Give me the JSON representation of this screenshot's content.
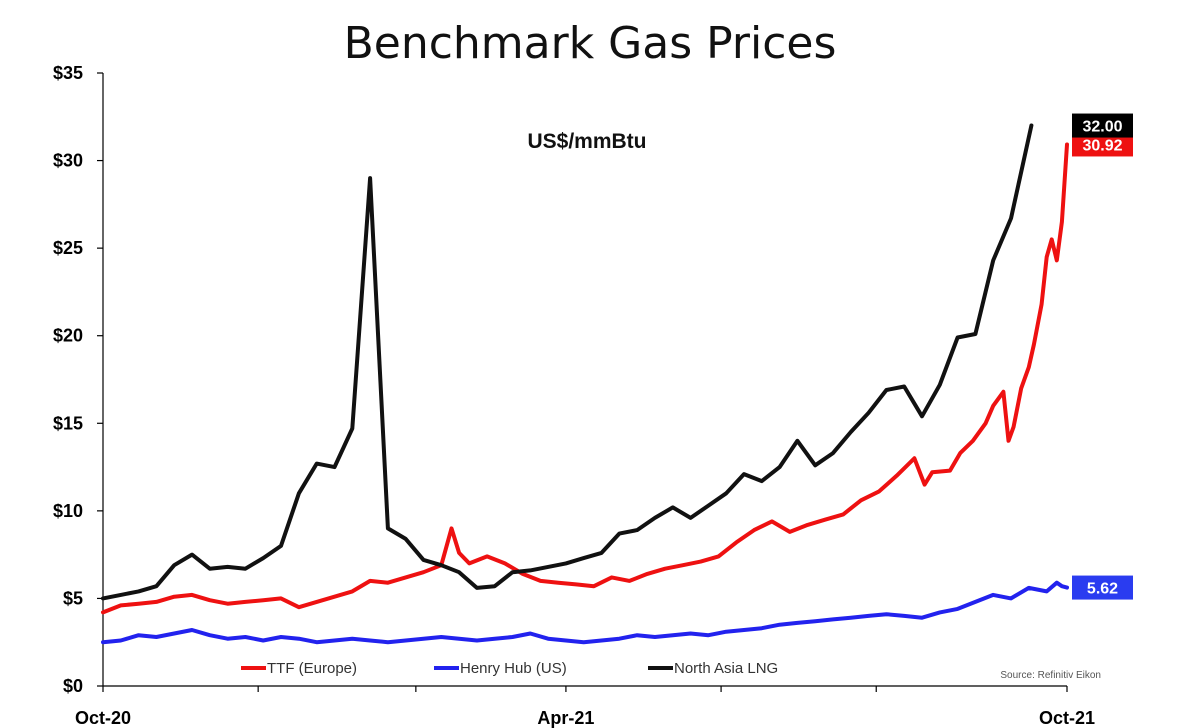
{
  "chart_data": {
    "type": "line",
    "title": "Benchmark Gas Prices",
    "subtitle": "US$/mmBtu",
    "xlabel": "",
    "ylabel": "",
    "ylim": [
      0,
      35
    ],
    "yticks": [
      0,
      5,
      10,
      15,
      20,
      25,
      30,
      35
    ],
    "ytick_labels": [
      "$0",
      "$5",
      "$10",
      "$15",
      "$20",
      "$25",
      "$30",
      "$35"
    ],
    "xticks": [
      "Oct-20",
      "Apr-21",
      "Oct-21"
    ],
    "xlim": [
      "2020-10",
      "2021-10"
    ],
    "grid": false,
    "legend_position": "bottom",
    "source": "Source: Refinitiv Eikon",
    "series": [
      {
        "name": "TTF (Europe)",
        "color": "#ee1111",
        "end_label": "30.92",
        "points": [
          [
            "2020-10-01",
            4.2
          ],
          [
            "2020-10-08",
            4.6
          ],
          [
            "2020-10-15",
            4.7
          ],
          [
            "2020-10-22",
            4.8
          ],
          [
            "2020-10-29",
            5.1
          ],
          [
            "2020-11-05",
            5.2
          ],
          [
            "2020-11-12",
            4.9
          ],
          [
            "2020-11-19",
            4.7
          ],
          [
            "2020-11-26",
            4.8
          ],
          [
            "2020-12-03",
            4.9
          ],
          [
            "2020-12-10",
            5.0
          ],
          [
            "2020-12-17",
            4.5
          ],
          [
            "2020-12-24",
            4.8
          ],
          [
            "2020-12-31",
            5.1
          ],
          [
            "2021-01-07",
            5.4
          ],
          [
            "2021-01-14",
            6.0
          ],
          [
            "2021-01-21",
            5.9
          ],
          [
            "2021-01-28",
            6.2
          ],
          [
            "2021-02-04",
            6.5
          ],
          [
            "2021-02-11",
            6.9
          ],
          [
            "2021-02-15",
            9.0
          ],
          [
            "2021-02-18",
            7.6
          ],
          [
            "2021-02-22",
            7.0
          ],
          [
            "2021-03-01",
            7.4
          ],
          [
            "2021-03-08",
            7.0
          ],
          [
            "2021-03-15",
            6.4
          ],
          [
            "2021-03-22",
            6.0
          ],
          [
            "2021-03-29",
            5.9
          ],
          [
            "2021-04-05",
            5.8
          ],
          [
            "2021-04-12",
            5.7
          ],
          [
            "2021-04-19",
            6.2
          ],
          [
            "2021-04-26",
            6.0
          ],
          [
            "2021-05-03",
            6.4
          ],
          [
            "2021-05-10",
            6.7
          ],
          [
            "2021-05-17",
            6.9
          ],
          [
            "2021-05-24",
            7.1
          ],
          [
            "2021-05-31",
            7.4
          ],
          [
            "2021-06-07",
            8.2
          ],
          [
            "2021-06-14",
            8.9
          ],
          [
            "2021-06-21",
            9.4
          ],
          [
            "2021-06-28",
            8.8
          ],
          [
            "2021-07-05",
            9.2
          ],
          [
            "2021-07-12",
            9.5
          ],
          [
            "2021-07-19",
            9.8
          ],
          [
            "2021-07-26",
            10.6
          ],
          [
            "2021-08-02",
            11.1
          ],
          [
            "2021-08-09",
            12.0
          ],
          [
            "2021-08-16",
            13.0
          ],
          [
            "2021-08-20",
            11.5
          ],
          [
            "2021-08-23",
            12.2
          ],
          [
            "2021-08-30",
            12.3
          ],
          [
            "2021-09-03",
            13.3
          ],
          [
            "2021-09-08",
            14.0
          ],
          [
            "2021-09-13",
            15.0
          ],
          [
            "2021-09-16",
            16.0
          ],
          [
            "2021-09-20",
            16.8
          ],
          [
            "2021-09-22",
            14.0
          ],
          [
            "2021-09-24",
            14.8
          ],
          [
            "2021-09-27",
            17.0
          ],
          [
            "2021-09-30",
            18.2
          ],
          [
            "2021-10-02",
            19.5
          ],
          [
            "2021-10-05",
            21.8
          ],
          [
            "2021-10-07",
            24.5
          ],
          [
            "2021-10-09",
            25.5
          ],
          [
            "2021-10-11",
            24.3
          ],
          [
            "2021-10-13",
            26.5
          ],
          [
            "2021-10-15",
            30.92
          ]
        ]
      },
      {
        "name": "Henry Hub (US)",
        "color": "#2222ee",
        "end_label": "5.62",
        "points": [
          [
            "2020-10-01",
            2.5
          ],
          [
            "2020-10-08",
            2.6
          ],
          [
            "2020-10-15",
            2.9
          ],
          [
            "2020-10-22",
            2.8
          ],
          [
            "2020-10-29",
            3.0
          ],
          [
            "2020-11-05",
            3.2
          ],
          [
            "2020-11-12",
            2.9
          ],
          [
            "2020-11-19",
            2.7
          ],
          [
            "2020-11-26",
            2.8
          ],
          [
            "2020-12-03",
            2.6
          ],
          [
            "2020-12-10",
            2.8
          ],
          [
            "2020-12-17",
            2.7
          ],
          [
            "2020-12-24",
            2.5
          ],
          [
            "2020-12-31",
            2.6
          ],
          [
            "2021-01-07",
            2.7
          ],
          [
            "2021-01-14",
            2.6
          ],
          [
            "2021-01-21",
            2.5
          ],
          [
            "2021-01-28",
            2.6
          ],
          [
            "2021-02-04",
            2.7
          ],
          [
            "2021-02-11",
            2.8
          ],
          [
            "2021-02-18",
            2.7
          ],
          [
            "2021-02-25",
            2.6
          ],
          [
            "2021-03-04",
            2.7
          ],
          [
            "2021-03-11",
            2.8
          ],
          [
            "2021-03-18",
            3.0
          ],
          [
            "2021-03-25",
            2.7
          ],
          [
            "2021-04-01",
            2.6
          ],
          [
            "2021-04-08",
            2.5
          ],
          [
            "2021-04-15",
            2.6
          ],
          [
            "2021-04-22",
            2.7
          ],
          [
            "2021-04-29",
            2.9
          ],
          [
            "2021-05-06",
            2.8
          ],
          [
            "2021-05-13",
            2.9
          ],
          [
            "2021-05-20",
            3.0
          ],
          [
            "2021-05-27",
            2.9
          ],
          [
            "2021-06-03",
            3.1
          ],
          [
            "2021-06-10",
            3.2
          ],
          [
            "2021-06-17",
            3.3
          ],
          [
            "2021-06-24",
            3.5
          ],
          [
            "2021-07-01",
            3.6
          ],
          [
            "2021-07-08",
            3.7
          ],
          [
            "2021-07-15",
            3.8
          ],
          [
            "2021-07-22",
            3.9
          ],
          [
            "2021-07-29",
            4.0
          ],
          [
            "2021-08-05",
            4.1
          ],
          [
            "2021-08-12",
            4.0
          ],
          [
            "2021-08-19",
            3.9
          ],
          [
            "2021-08-26",
            4.2
          ],
          [
            "2021-09-02",
            4.4
          ],
          [
            "2021-09-09",
            4.8
          ],
          [
            "2021-09-16",
            5.2
          ],
          [
            "2021-09-23",
            5.0
          ],
          [
            "2021-09-30",
            5.6
          ],
          [
            "2021-10-07",
            5.4
          ],
          [
            "2021-10-11",
            5.9
          ],
          [
            "2021-10-13",
            5.7
          ],
          [
            "2021-10-15",
            5.62
          ]
        ]
      },
      {
        "name": "North Asia LNG",
        "color": "#111111",
        "end_label": "32.00",
        "points": [
          [
            "2020-10-01",
            5.0
          ],
          [
            "2020-10-08",
            5.2
          ],
          [
            "2020-10-15",
            5.4
          ],
          [
            "2020-10-22",
            5.7
          ],
          [
            "2020-10-29",
            6.9
          ],
          [
            "2020-11-05",
            7.5
          ],
          [
            "2020-11-12",
            6.7
          ],
          [
            "2020-11-19",
            6.8
          ],
          [
            "2020-11-26",
            6.7
          ],
          [
            "2020-12-03",
            7.3
          ],
          [
            "2020-12-10",
            8.0
          ],
          [
            "2020-12-17",
            11.0
          ],
          [
            "2020-12-24",
            12.7
          ],
          [
            "2020-12-31",
            12.5
          ],
          [
            "2021-01-07",
            14.7
          ],
          [
            "2021-01-14",
            29.0
          ],
          [
            "2021-01-21",
            9.0
          ],
          [
            "2021-01-28",
            8.4
          ],
          [
            "2021-02-04",
            7.2
          ],
          [
            "2021-02-11",
            6.9
          ],
          [
            "2021-02-18",
            6.5
          ],
          [
            "2021-02-25",
            5.6
          ],
          [
            "2021-03-04",
            5.7
          ],
          [
            "2021-03-11",
            6.5
          ],
          [
            "2021-03-18",
            6.6
          ],
          [
            "2021-03-25",
            6.8
          ],
          [
            "2021-04-01",
            7.0
          ],
          [
            "2021-04-08",
            7.3
          ],
          [
            "2021-04-15",
            7.6
          ],
          [
            "2021-04-22",
            8.7
          ],
          [
            "2021-04-29",
            8.9
          ],
          [
            "2021-05-06",
            9.6
          ],
          [
            "2021-05-13",
            10.2
          ],
          [
            "2021-05-20",
            9.6
          ],
          [
            "2021-05-27",
            10.3
          ],
          [
            "2021-06-03",
            11.0
          ],
          [
            "2021-06-10",
            12.1
          ],
          [
            "2021-06-17",
            11.7
          ],
          [
            "2021-06-24",
            12.5
          ],
          [
            "2021-07-01",
            14.0
          ],
          [
            "2021-07-08",
            12.6
          ],
          [
            "2021-07-15",
            13.3
          ],
          [
            "2021-07-22",
            14.5
          ],
          [
            "2021-07-29",
            15.6
          ],
          [
            "2021-08-05",
            16.9
          ],
          [
            "2021-08-12",
            17.1
          ],
          [
            "2021-08-19",
            15.4
          ],
          [
            "2021-08-26",
            17.2
          ],
          [
            "2021-09-02",
            19.9
          ],
          [
            "2021-09-09",
            20.1
          ],
          [
            "2021-09-16",
            24.3
          ],
          [
            "2021-09-23",
            26.7
          ],
          [
            "2021-10-01",
            32.0
          ]
        ]
      }
    ]
  }
}
